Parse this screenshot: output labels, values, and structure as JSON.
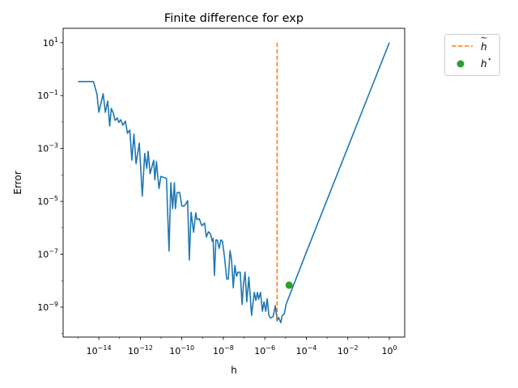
{
  "chart_data": {
    "type": "line",
    "title": "Finite difference for exp",
    "xlabel": "h",
    "ylabel": "Error",
    "xscale": "log",
    "yscale": "log",
    "xlim": [
      1.9e-16,
      5.5
    ],
    "ylim": [
      7.4e-11,
      35
    ],
    "grid": false,
    "legend_position": "outside-top-right",
    "x_ticks": [
      {
        "value": 1e-14,
        "base": "10",
        "exp": "−14"
      },
      {
        "value": 1e-12,
        "base": "10",
        "exp": "−12"
      },
      {
        "value": 1e-10,
        "base": "10",
        "exp": "−10"
      },
      {
        "value": 1e-08,
        "base": "10",
        "exp": "−8"
      },
      {
        "value": 1e-06,
        "base": "10",
        "exp": "−6"
      },
      {
        "value": 0.0001,
        "base": "10",
        "exp": "−4"
      },
      {
        "value": 0.01,
        "base": "10",
        "exp": "−2"
      },
      {
        "value": 1,
        "base": "10",
        "exp": "0"
      }
    ],
    "y_ticks": [
      {
        "value": 10,
        "base": "10",
        "exp": "1"
      },
      {
        "value": 0.1,
        "base": "10",
        "exp": "−1"
      },
      {
        "value": 0.001,
        "base": "10",
        "exp": "−3"
      },
      {
        "value": 1e-05,
        "base": "10",
        "exp": "−5"
      },
      {
        "value": 1e-07,
        "base": "10",
        "exp": "−7"
      },
      {
        "value": 1e-09,
        "base": "10",
        "exp": "−9"
      }
    ],
    "series": [
      {
        "color": "#1f77b4",
        "style": "solid",
        "x": [
          1e-15,
          5.5e-15,
          8.1e-15,
          1e-14,
          1.62e-14,
          2.04e-14,
          2.69e-14,
          3.31e-14,
          3.98e-14,
          5e-14,
          6e-14,
          7.7e-14,
          9.2e-14,
          1.13e-13,
          1.44e-13,
          1.9e-13,
          2.4e-13,
          3.1e-13,
          3.9e-13,
          4.9e-13,
          6.2e-13,
          8.9e-13,
          1.24e-12,
          1.62e-12,
          2.04e-12,
          2.4e-12,
          2.95e-12,
          4.4e-12,
          5e-12,
          6e-12,
          7.9e-12,
          9.8e-12,
          1.82e-11,
          2.4e-11,
          2.95e-11,
          3.6e-11,
          4.4e-11,
          4.9e-11,
          5.9e-11,
          7.9e-11,
          1e-10,
          1.29e-10,
          1.51e-10,
          1.9e-10,
          2.3e-10,
          2.8e-10,
          3.7e-10,
          4.7e-10,
          5.4e-10,
          6.9e-10,
          9.2e-10,
          1.25e-09,
          1.51e-09,
          1.91e-09,
          2.4e-09,
          2.9e-09,
          3.2e-09,
          3.7e-09,
          4.4e-09,
          5.2e-09,
          6.3e-09,
          7.6e-09,
          9.1e-09,
          1.15e-08,
          1.45e-08,
          1.74e-08,
          2.1e-08,
          2.5e-08,
          3e-08,
          3.6e-08,
          4.3e-08,
          5.1e-08,
          6.5e-08,
          8e-08,
          9.3e-08,
          1.12e-07,
          1.35e-07,
          1.7e-07,
          2.3e-07,
          3.1e-07,
          3.7e-07,
          4.4e-07,
          5e-07,
          6.2e-07,
          7.6e-07,
          9.1e-07,
          1.1e-06,
          1.3e-06,
          1.56e-06,
          1.86e-06,
          2.5e-06,
          3.2e-06,
          3.9e-06,
          4.6e-06,
          5.9e-06,
          6.9e-06,
          8.7e-06,
          1.05e-05,
          0.000115,
          1
        ],
        "y": [
          0.34,
          0.34,
          0.113,
          0.0234,
          0.118,
          0.0234,
          0.0628,
          0.00708,
          0.0327,
          0.0219,
          0.0116,
          0.0143,
          0.0096,
          0.0122,
          0.0076,
          0.0108,
          0.00376,
          0.00498,
          0.00036,
          0.0035,
          0.000264,
          0.00158,
          1.58e-05,
          0.00065,
          0.000178,
          0.00078,
          0.000111,
          0.00036,
          6.5e-05,
          0.00032,
          3.06e-05,
          8.8e-05,
          7.4e-05,
          1.32e-07,
          5.1e-05,
          5.3e-06,
          5.1e-05,
          5.3e-06,
          2.15e-05,
          2.15e-05,
          6.7e-06,
          6.7e-06,
          7.8e-06,
          1.07e-05,
          6.1e-08,
          3.9e-06,
          6.8e-07,
          3.7e-06,
          2.05e-06,
          2.2e-06,
          1.2e-06,
          1.51e-06,
          4.5e-07,
          7.1e-07,
          5.9e-07,
          3.1e-07,
          4e-07,
          1.59e-08,
          3.5e-07,
          3.4e-07,
          1.67e-07,
          3.5e-07,
          3.1e-07,
          7.2e-08,
          1.17e-08,
          1.17e-08,
          1.38e-07,
          6.1e-08,
          5.4e-09,
          3.8e-08,
          1.48e-08,
          2.1e-08,
          2.1e-08,
          1.26e-09,
          7.3e-09,
          2.1e-08,
          1.6e-09,
          1.38e-08,
          4.9e-10,
          3.6e-09,
          1.8e-09,
          3.6e-09,
          2e-09,
          3.6e-09,
          7e-10,
          1.6e-09,
          7e-10,
          2.1e-09,
          4.9e-10,
          3.9e-10,
          4.4e-10,
          1.13e-09,
          3.1e-10,
          4.1e-10,
          2.6e-10,
          4.9e-10,
          5.6e-10,
          1.26e-09,
          1.56e-07,
          10
        ]
      },
      {
        "name": "h̃",
        "color": "#ff7f0e",
        "style": "dashed",
        "x": [
          3.9e-06,
          3.9e-06
        ],
        "y": [
          10,
          2.8e-10
        ]
      },
      {
        "name": "h⋆",
        "color": "#2ca02c",
        "style": "marker",
        "x": [
          1.48e-05
        ],
        "y": [
          6.8e-09
        ]
      }
    ],
    "legend": [
      {
        "label_base": "h",
        "label_mark": "~",
        "color": "#ff7f0e",
        "marker": "dashed-line"
      },
      {
        "label_base": "h",
        "label_mark": "⋆",
        "color": "#2ca02c",
        "marker": "circle"
      }
    ]
  }
}
